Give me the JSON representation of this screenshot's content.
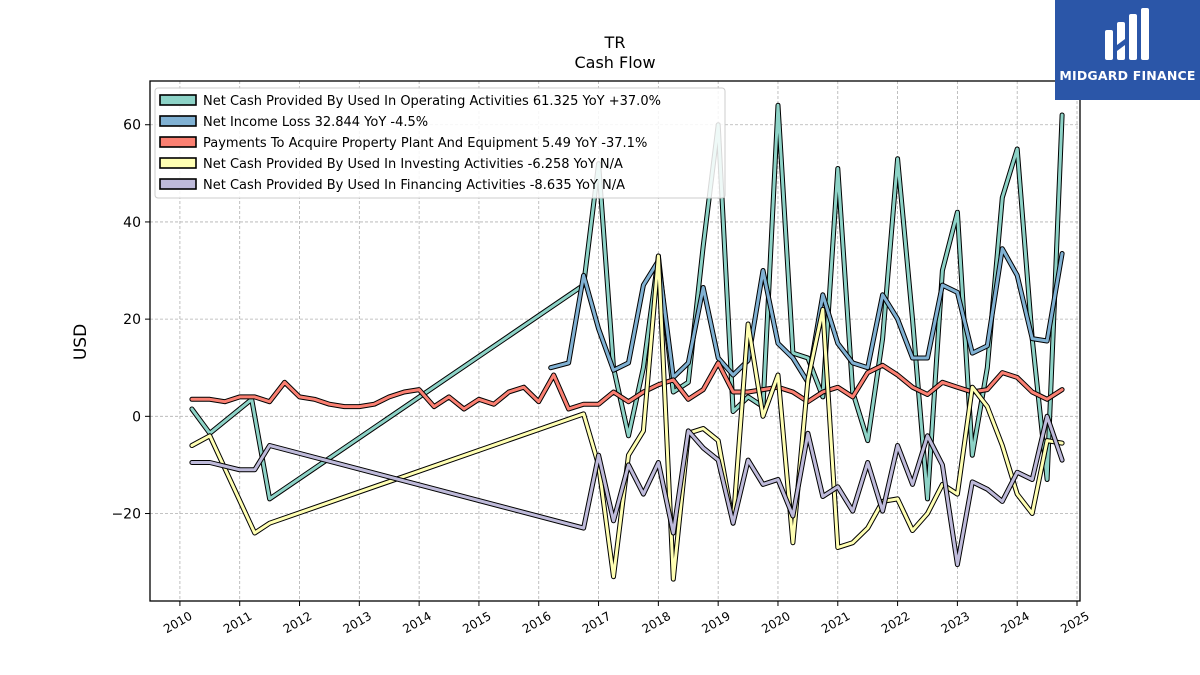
{
  "chart_data": {
    "type": "line",
    "title": "TR",
    "subtitle": "Cash Flow",
    "ylabel": "USD",
    "xlabel": "",
    "xlim": [
      2009.5,
      2025.05
    ],
    "ylim": [
      -38,
      69
    ],
    "x_ticks": [
      2010,
      2011,
      2012,
      2013,
      2014,
      2015,
      2016,
      2017,
      2018,
      2019,
      2020,
      2021,
      2022,
      2023,
      2024,
      2025
    ],
    "y_ticks": [
      -20,
      0,
      20,
      40,
      60
    ],
    "grid": true,
    "legend_position": "upper-left",
    "series": [
      {
        "name": "Net Cash Provided By Used In Operating Activities",
        "legend": "Net Cash Provided By Used In Operating Activities  61.325 YoY +37.0%",
        "color": "#8dd3c7",
        "x": [
          2010.2,
          2010.5,
          2011.2,
          2011.5,
          2016.75,
          2017.0,
          2017.25,
          2017.5,
          2017.75,
          2018.0,
          2018.25,
          2018.5,
          2018.75,
          2019.0,
          2019.25,
          2019.5,
          2019.75,
          2020.0,
          2020.25,
          2020.5,
          2020.75,
          2021.0,
          2021.25,
          2021.5,
          2021.75,
          2022.0,
          2022.25,
          2022.5,
          2022.75,
          2023.0,
          2023.25,
          2023.5,
          2023.75,
          2024.0,
          2024.25,
          2024.5,
          2024.75
        ],
        "y": [
          1.5,
          -3.5,
          3.5,
          -17,
          27,
          52,
          10,
          -4,
          10,
          33,
          5,
          7,
          35,
          60,
          1,
          4,
          2,
          64,
          13,
          12,
          4,
          51,
          5,
          -5,
          16,
          53,
          20,
          -17,
          30,
          42,
          -8,
          10,
          45,
          55,
          16,
          -13,
          62
        ]
      },
      {
        "name": "Net Income Loss",
        "legend": "Net Income Loss  32.844 YoY -4.5%",
        "color": "#80b1d3",
        "x": [
          2016.2,
          2016.5,
          2016.75,
          2017.0,
          2017.25,
          2017.5,
          2017.75,
          2018.0,
          2018.25,
          2018.5,
          2018.75,
          2019.0,
          2019.25,
          2019.5,
          2019.75,
          2020.0,
          2020.25,
          2020.5,
          2020.75,
          2021.0,
          2021.25,
          2021.5,
          2021.75,
          2022.0,
          2022.25,
          2022.5,
          2022.75,
          2023.0,
          2023.25,
          2023.5,
          2023.75,
          2024.0,
          2024.25,
          2024.5,
          2024.75
        ],
        "y": [
          10,
          11,
          29,
          18,
          9.5,
          11,
          27,
          32,
          8,
          11,
          26.5,
          12,
          8.5,
          11.5,
          30,
          15,
          12,
          7,
          25,
          15,
          11,
          10,
          25,
          20,
          12,
          12,
          27,
          25.5,
          13,
          14.5,
          34.5,
          29,
          16,
          15.5,
          33.5
        ]
      },
      {
        "name": "Payments To Acquire Property Plant And Equipment",
        "legend": "Payments To Acquire Property Plant And Equipment  5.49 YoY -37.1%",
        "color": "#fb8072",
        "x": [
          2010.2,
          2010.5,
          2010.75,
          2011.0,
          2011.25,
          2011.5,
          2011.75,
          2012.0,
          2012.25,
          2012.5,
          2012.75,
          2013.0,
          2013.25,
          2013.5,
          2013.75,
          2014.0,
          2014.25,
          2014.5,
          2014.75,
          2015.0,
          2015.25,
          2015.5,
          2015.75,
          2016.0,
          2016.25,
          2016.5,
          2016.75,
          2017.0,
          2017.25,
          2017.5,
          2017.75,
          2018.0,
          2018.25,
          2018.5,
          2018.75,
          2019.0,
          2019.25,
          2019.5,
          2019.75,
          2020.0,
          2020.25,
          2020.5,
          2020.75,
          2021.0,
          2021.25,
          2021.5,
          2021.75,
          2022.0,
          2022.25,
          2022.5,
          2022.75,
          2023.0,
          2023.25,
          2023.5,
          2023.75,
          2024.0,
          2024.25,
          2024.5,
          2024.75
        ],
        "y": [
          3.5,
          3.5,
          3,
          4,
          4,
          3,
          7,
          4,
          3.5,
          2.5,
          2,
          2,
          2.5,
          4,
          5,
          5.5,
          2,
          4,
          1.5,
          3.5,
          2.5,
          5,
          6,
          3,
          8.5,
          1.5,
          2.5,
          2.5,
          5,
          3,
          5,
          6.5,
          7.5,
          3.5,
          5.5,
          11,
          5,
          5,
          5.5,
          6,
          5,
          3,
          5,
          6,
          4,
          9,
          10.5,
          8.5,
          6,
          4.5,
          7,
          6,
          5,
          5.5,
          9,
          8,
          5,
          3.5,
          5.5
        ]
      },
      {
        "name": "Net Cash Provided By Used In Investing Activities",
        "legend": "Net Cash Provided By Used In Investing Activities  -6.258 YoY N/A",
        "color": "#ffffb3",
        "x": [
          2010.2,
          2010.5,
          2011.25,
          2011.5,
          2016.75,
          2017.0,
          2017.25,
          2017.5,
          2017.75,
          2018.0,
          2018.25,
          2018.5,
          2018.75,
          2019.0,
          2019.25,
          2019.5,
          2019.75,
          2020.0,
          2020.25,
          2020.5,
          2020.75,
          2021.0,
          2021.25,
          2021.5,
          2021.75,
          2022.0,
          2022.25,
          2022.5,
          2022.75,
          2023.0,
          2023.25,
          2023.5,
          2023.75,
          2024.0,
          2024.25,
          2024.5,
          2024.75
        ],
        "y": [
          -6,
          -4,
          -24,
          -22,
          0.5,
          -10,
          -33,
          -8,
          -3,
          33,
          -33.5,
          -3.5,
          -2.5,
          -5,
          -22,
          19,
          0,
          8.5,
          -26,
          7.5,
          22,
          -27,
          -26,
          -23,
          -17.5,
          -17,
          -23.5,
          -20,
          -14,
          -16,
          6,
          2,
          -6,
          -16,
          -20,
          -5,
          -5.5
        ]
      },
      {
        "name": "Net Cash Provided By Used In Financing Activities",
        "legend": "Net Cash Provided By Used In Financing Activities  -8.635 YoY N/A",
        "color": "#bebada",
        "x": [
          2010.2,
          2010.5,
          2011.0,
          2011.25,
          2011.5,
          2016.75,
          2017.0,
          2017.25,
          2017.5,
          2017.75,
          2018.0,
          2018.25,
          2018.5,
          2018.75,
          2019.0,
          2019.25,
          2019.5,
          2019.75,
          2020.0,
          2020.25,
          2020.5,
          2020.75,
          2021.0,
          2021.25,
          2021.5,
          2021.75,
          2022.0,
          2022.25,
          2022.5,
          2022.75,
          2023.0,
          2023.25,
          2023.5,
          2023.75,
          2024.0,
          2024.25,
          2024.5,
          2024.75
        ],
        "y": [
          -9.5,
          -9.5,
          -11,
          -11,
          -6,
          -23,
          -8,
          -21.5,
          -10,
          -16,
          -9.5,
          -24,
          -3,
          -6.5,
          -9,
          -22,
          -9,
          -14,
          -13,
          -20.5,
          -3.5,
          -16.5,
          -14.5,
          -19.5,
          -9.5,
          -19.5,
          -6,
          -14,
          -4,
          -10,
          -30.5,
          -13.5,
          -15,
          -17.5,
          -11.5,
          -13,
          0,
          -9
        ]
      }
    ]
  },
  "logo": {
    "text": "MIDGARD FINANCE",
    "color": "#2b56a8"
  }
}
